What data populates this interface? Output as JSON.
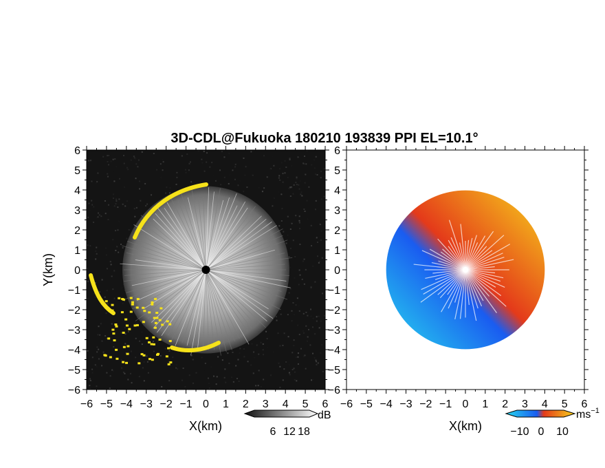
{
  "title": "3D-CDL@Fukuoka 180210 193839 PPI EL=10.1°",
  "chart_data": [
    {
      "type": "heatmap",
      "panel": "left",
      "xlabel": "X(km)",
      "ylabel": "Y(km)",
      "xlim": [
        -6,
        6
      ],
      "ylim": [
        -6,
        6
      ],
      "xticks": [
        "-6",
        "-5",
        "-4",
        "-3",
        "-2",
        "-1",
        "0",
        "1",
        "2",
        "3",
        "4",
        "5",
        "6"
      ],
      "yticks": [
        "6",
        "5",
        "4",
        "3",
        "2",
        "1",
        "0",
        "-1",
        "-2",
        "-3",
        "-4",
        "-5",
        "-6"
      ],
      "colorbar": {
        "unit": "dB",
        "ticks": [
          "6",
          "12",
          "18"
        ],
        "colors": [
          "#111111",
          "#ffffff"
        ]
      },
      "echo_radius_km": 4.2,
      "highlight_color": "#f6e21a"
    },
    {
      "type": "heatmap",
      "panel": "right",
      "xlabel": "X(km)",
      "xlim": [
        -6,
        6
      ],
      "ylim": [
        -6,
        6
      ],
      "xticks": [
        "-6",
        "-5",
        "-4",
        "-3",
        "-2",
        "-1",
        "0",
        "1",
        "2",
        "3",
        "4",
        "5",
        "6"
      ],
      "yticks": [
        "6",
        "5",
        "4",
        "3",
        "2",
        "1",
        "0",
        "-1",
        "-2",
        "-3",
        "-4",
        "-5",
        "-6"
      ],
      "colorbar": {
        "unit": "ms",
        "unit_exp": "−1",
        "ticks": [
          "−10",
          "0",
          "10"
        ],
        "colors": [
          "#27d7ee",
          "#1a5cf0",
          "#e43a1a",
          "#f7d21c"
        ]
      },
      "echo_radius_km": 4.0
    }
  ]
}
